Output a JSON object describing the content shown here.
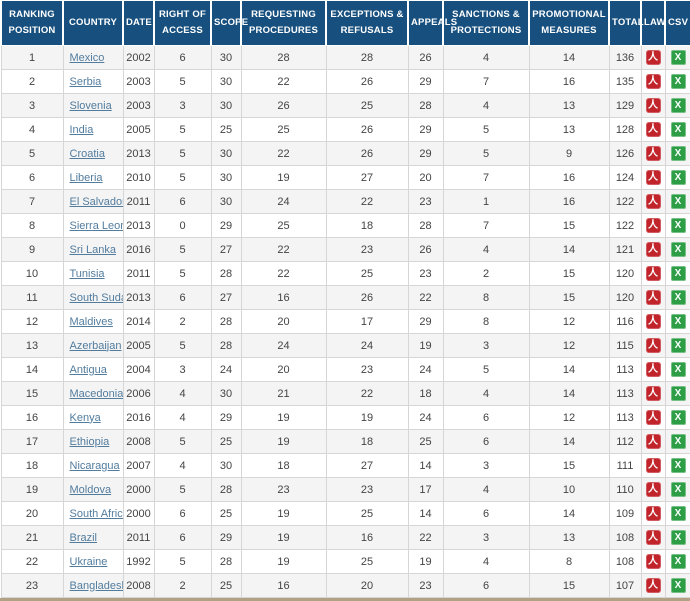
{
  "table": {
    "columns": [
      {
        "key": "rank",
        "label": "Ranking Position"
      },
      {
        "key": "country",
        "label": "Country"
      },
      {
        "key": "date",
        "label": "Date"
      },
      {
        "key": "roa",
        "label": "Right of Access"
      },
      {
        "key": "scope",
        "label": "Scope"
      },
      {
        "key": "req",
        "label": "Requesting Procedures"
      },
      {
        "key": "exc",
        "label": "Exceptions & Refusals"
      },
      {
        "key": "app",
        "label": "Appeals"
      },
      {
        "key": "sanc",
        "label": "Sanctions & Protections"
      },
      {
        "key": "prom",
        "label": "Promotional Measures"
      },
      {
        "key": "total",
        "label": "Total"
      },
      {
        "key": "law",
        "label": "Law"
      },
      {
        "key": "csv",
        "label": "CSV"
      }
    ],
    "value_keys_order": [
      "right_of_access",
      "scope",
      "requesting_procedures",
      "exceptions_refusals",
      "appeals",
      "sanctions_protections",
      "promotional_measures"
    ],
    "rows": [
      {
        "rank": 1,
        "country": "Mexico",
        "date": 2002,
        "values": [
          6,
          30,
          28,
          28,
          26,
          4,
          14
        ],
        "total": 136
      },
      {
        "rank": 2,
        "country": "Serbia",
        "date": 2003,
        "values": [
          5,
          30,
          22,
          26,
          29,
          7,
          16
        ],
        "total": 135
      },
      {
        "rank": 3,
        "country": "Slovenia",
        "date": 2003,
        "values": [
          3,
          30,
          26,
          25,
          28,
          4,
          13
        ],
        "total": 129
      },
      {
        "rank": 4,
        "country": "India",
        "date": 2005,
        "values": [
          5,
          25,
          25,
          26,
          29,
          5,
          13
        ],
        "total": 128
      },
      {
        "rank": 5,
        "country": "Croatia",
        "date": 2013,
        "values": [
          5,
          30,
          22,
          26,
          29,
          5,
          9
        ],
        "total": 126
      },
      {
        "rank": 6,
        "country": "Liberia",
        "date": 2010,
        "values": [
          5,
          30,
          19,
          27,
          20,
          7,
          16
        ],
        "total": 124
      },
      {
        "rank": 7,
        "country": "El Salvador",
        "date": 2011,
        "values": [
          6,
          30,
          24,
          22,
          23,
          1,
          16
        ],
        "total": 122
      },
      {
        "rank": 8,
        "country": "Sierra Leone",
        "date": 2013,
        "values": [
          0,
          29,
          25,
          18,
          28,
          7,
          15
        ],
        "total": 122
      },
      {
        "rank": 9,
        "country": "Sri Lanka",
        "date": 2016,
        "values": [
          5,
          27,
          22,
          23,
          26,
          4,
          14
        ],
        "total": 121
      },
      {
        "rank": 10,
        "country": "Tunisia",
        "date": 2011,
        "values": [
          5,
          28,
          22,
          25,
          23,
          2,
          15
        ],
        "total": 120
      },
      {
        "rank": 11,
        "country": "South Sudan",
        "date": 2013,
        "values": [
          6,
          27,
          16,
          26,
          22,
          8,
          15
        ],
        "total": 120
      },
      {
        "rank": 12,
        "country": "Maldives",
        "date": 2014,
        "values": [
          2,
          28,
          20,
          17,
          29,
          8,
          12
        ],
        "total": 116
      },
      {
        "rank": 13,
        "country": "Azerbaijan",
        "date": 2005,
        "values": [
          5,
          28,
          24,
          24,
          19,
          3,
          12
        ],
        "total": 115
      },
      {
        "rank": 14,
        "country": "Antigua",
        "date": 2004,
        "values": [
          3,
          24,
          20,
          23,
          24,
          5,
          14
        ],
        "total": 113
      },
      {
        "rank": 15,
        "country": "Macedonia",
        "date": 2006,
        "values": [
          4,
          30,
          21,
          22,
          18,
          4,
          14
        ],
        "total": 113
      },
      {
        "rank": 16,
        "country": "Kenya",
        "date": 2016,
        "values": [
          4,
          29,
          19,
          19,
          24,
          6,
          12
        ],
        "total": 113
      },
      {
        "rank": 17,
        "country": "Ethiopia",
        "date": 2008,
        "values": [
          5,
          25,
          19,
          18,
          25,
          6,
          14
        ],
        "total": 112
      },
      {
        "rank": 18,
        "country": "Nicaragua",
        "date": 2007,
        "values": [
          4,
          30,
          18,
          27,
          14,
          3,
          15
        ],
        "total": 111
      },
      {
        "rank": 19,
        "country": "Moldova",
        "date": 2000,
        "values": [
          5,
          28,
          23,
          23,
          17,
          4,
          10
        ],
        "total": 110
      },
      {
        "rank": 20,
        "country": "South Africa",
        "date": 2000,
        "values": [
          6,
          25,
          19,
          25,
          14,
          6,
          14
        ],
        "total": 109
      },
      {
        "rank": 21,
        "country": "Brazil",
        "date": 2011,
        "values": [
          6,
          29,
          19,
          16,
          22,
          3,
          13
        ],
        "total": 108
      },
      {
        "rank": 22,
        "country": "Ukraine",
        "date": 1992,
        "values": [
          5,
          28,
          19,
          25,
          19,
          4,
          8
        ],
        "total": 108
      },
      {
        "rank": 23,
        "country": "Bangladesh",
        "date": 2008,
        "values": [
          2,
          25,
          16,
          20,
          23,
          6,
          15
        ],
        "total": 107
      }
    ],
    "icons": {
      "pdf_glyph": "人",
      "csv_glyph": "X"
    }
  },
  "colors": {
    "header_background": "#17507f",
    "header_text": "#ffffff",
    "row_stripe": "#f4f4f4",
    "row_plain": "#ffffff",
    "cell_border": "#d6d6d6",
    "country_link": "#527c9e",
    "pdf_icon_red": "#c2242b",
    "excel_icon_green": "#2d9e45",
    "bottom_strip": "#b3a183"
  }
}
